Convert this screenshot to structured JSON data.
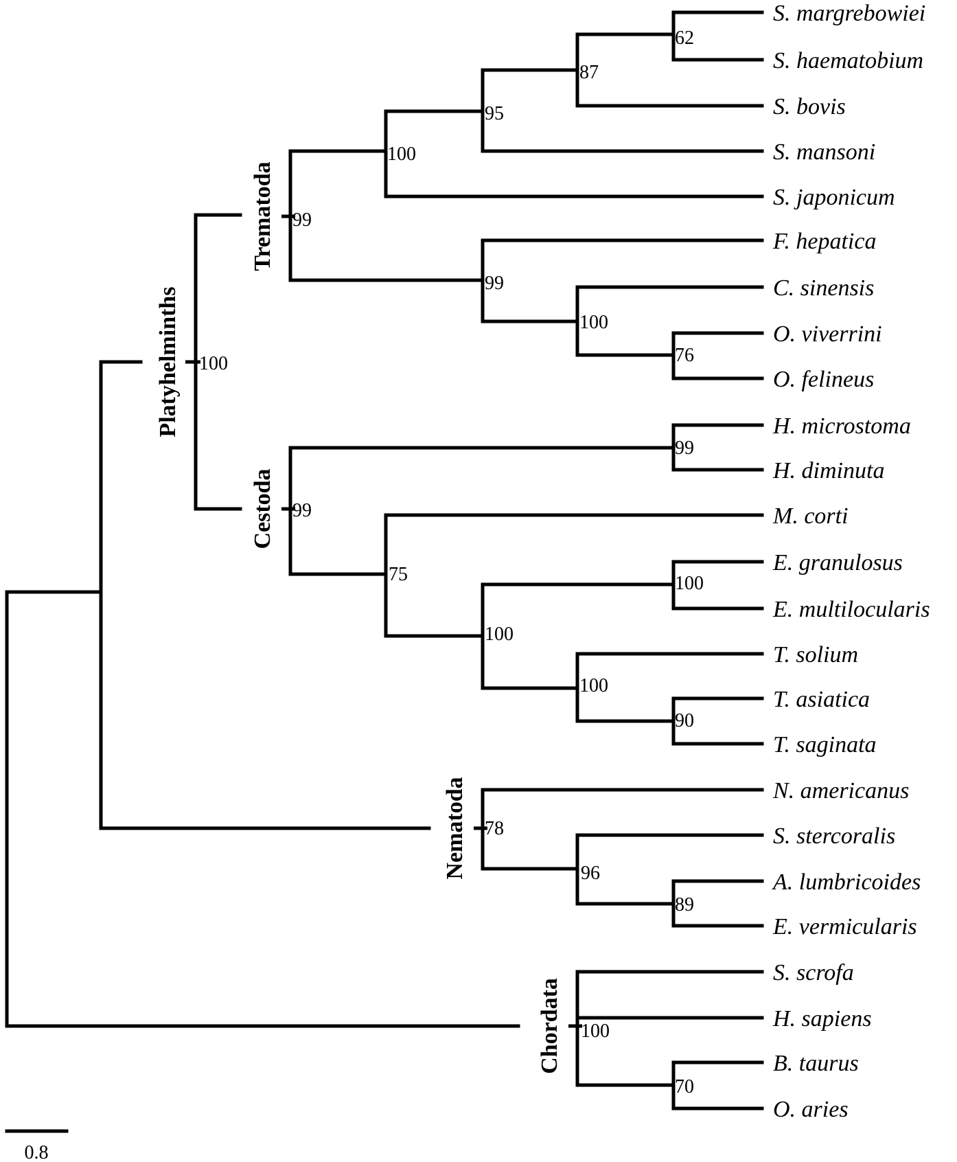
{
  "figure": {
    "type": "phylogenetic_tree",
    "scale_bar_label": "0.8",
    "taxa": [
      "S. margrebowiei",
      "S. haematobium",
      "S. bovis",
      "S. mansoni",
      "S. japonicum",
      "F. hepatica",
      "C. sinensis",
      "O. viverrini",
      "O. felineus",
      "H. microstoma",
      "H. diminuta",
      "M. corti",
      "E. granulosus",
      "E. multilocularis",
      "T. solium",
      "T. asiatica",
      "T. saginata",
      "N. americanus",
      "S. stercoralis",
      "A. lumbricoides",
      "E. vermicularis",
      "S. scrofa",
      "H. sapiens",
      "B. taurus",
      "O. aries"
    ],
    "clades": {
      "platyhelminths": "Platyhelminths",
      "trematoda": "Trematoda",
      "cestoda": "Cestoda",
      "nematoda": "Nematoda",
      "chordata": "Chordata"
    },
    "bootstrap": {
      "marg_haem": "62",
      "schisto_87": "87",
      "schisto_95": "95",
      "schisto_100": "100",
      "trematoda": "99",
      "fasciola_group": "99",
      "opisth_group": "100",
      "opisthorchis": "76",
      "platyhelminths": "100",
      "hymenolepis": "99",
      "cestoda": "99",
      "cestode_75": "75",
      "echinococcus": "100",
      "echino_taenia": "100",
      "taenia": "100",
      "taenia_asia_sag": "90",
      "nematoda": "78",
      "nem_96": "96",
      "asc_ent": "89",
      "chordata": "100",
      "bos_ovis": "70"
    }
  }
}
